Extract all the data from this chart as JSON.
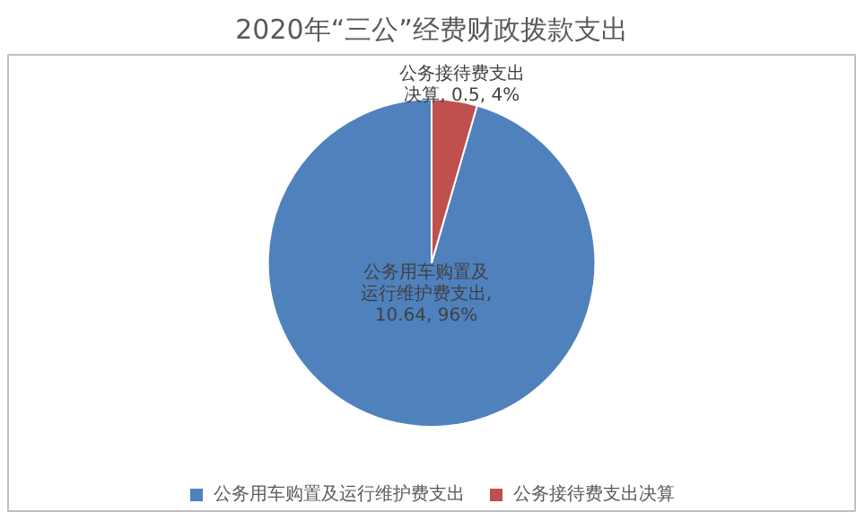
{
  "chart_data": {
    "type": "pie",
    "title": "2020年“三公”经费财政拨款支出",
    "categories": [
      "公务用车购置及运行维护费支出",
      "公务接待费支出决算"
    ],
    "values": [
      10.64,
      0.5
    ],
    "colors": [
      "#4f81bd",
      "#c0504d"
    ],
    "value_labels": [
      "公务用车购置及运行维护费支出, 10.64, 96%",
      "公务接待费支出决算, 0.5, 4%"
    ],
    "legend": "bottom"
  }
}
